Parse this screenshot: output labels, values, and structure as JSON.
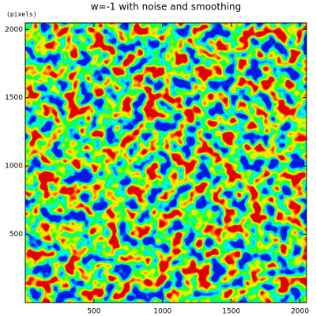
{
  "chart_data": {
    "type": "heatmap",
    "title": "w=-1 with noise and smoothing",
    "y_label": "(pixels)",
    "xlim": [
      0,
      2048
    ],
    "ylim": [
      0,
      2048
    ],
    "xticks": [
      500,
      1000,
      1500,
      2000
    ],
    "yticks": [
      500,
      1000,
      1500,
      2000
    ]
  }
}
